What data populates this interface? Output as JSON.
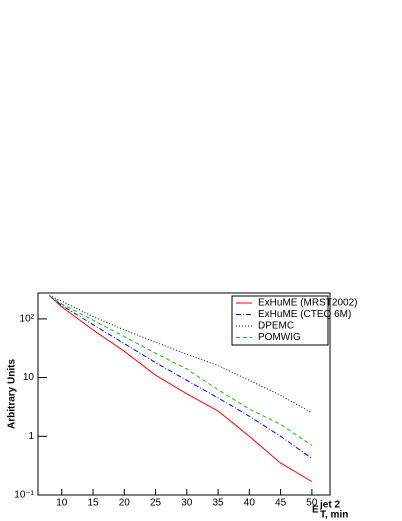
{
  "chart_data": {
    "type": "line",
    "x_label": {
      "main": "E",
      "sup": "jet 2",
      "sub": "T, min"
    },
    "y_label": "Arbitrary Units",
    "xlim": [
      6.2,
      52.9
    ],
    "xticks": [
      10,
      15,
      20,
      25,
      30,
      35,
      40,
      45,
      50
    ],
    "ylim": [
      0.1,
      276
    ],
    "log_y": true,
    "yticks": [
      {
        "value": 0.1,
        "label": "10⁻¹"
      },
      1,
      10,
      {
        "value": 100,
        "label": "10²"
      }
    ],
    "legend": "top-right",
    "x": [
      8,
      10,
      15,
      20,
      25,
      30,
      35,
      40,
      45,
      50
    ],
    "series": [
      {
        "name": "ExHuME (MRST2002)",
        "color": "#ff0000",
        "style": "solid",
        "values": [
          250,
          160,
          65,
          28,
          11,
          5.3,
          2.7,
          1.0,
          0.35,
          0.17
        ]
      },
      {
        "name": "ExHuME (CTEQ 6M)",
        "color": "#0000ff",
        "style": "dashdot",
        "values": [
          250,
          170,
          80,
          38,
          18,
          9,
          4.5,
          2.2,
          1.0,
          0.42
        ]
      },
      {
        "name": "DPEMC",
        "color": "#000000",
        "style": "dotted",
        "values": [
          250,
          200,
          110,
          65,
          40,
          25,
          16,
          9,
          5,
          2.5
        ]
      },
      {
        "name": "POMWIG",
        "color": "#00cc00",
        "style": "dashed",
        "values": [
          250,
          180,
          95,
          50,
          26,
          14,
          6.2,
          2.9,
          1.6,
          0.7
        ]
      }
    ]
  }
}
